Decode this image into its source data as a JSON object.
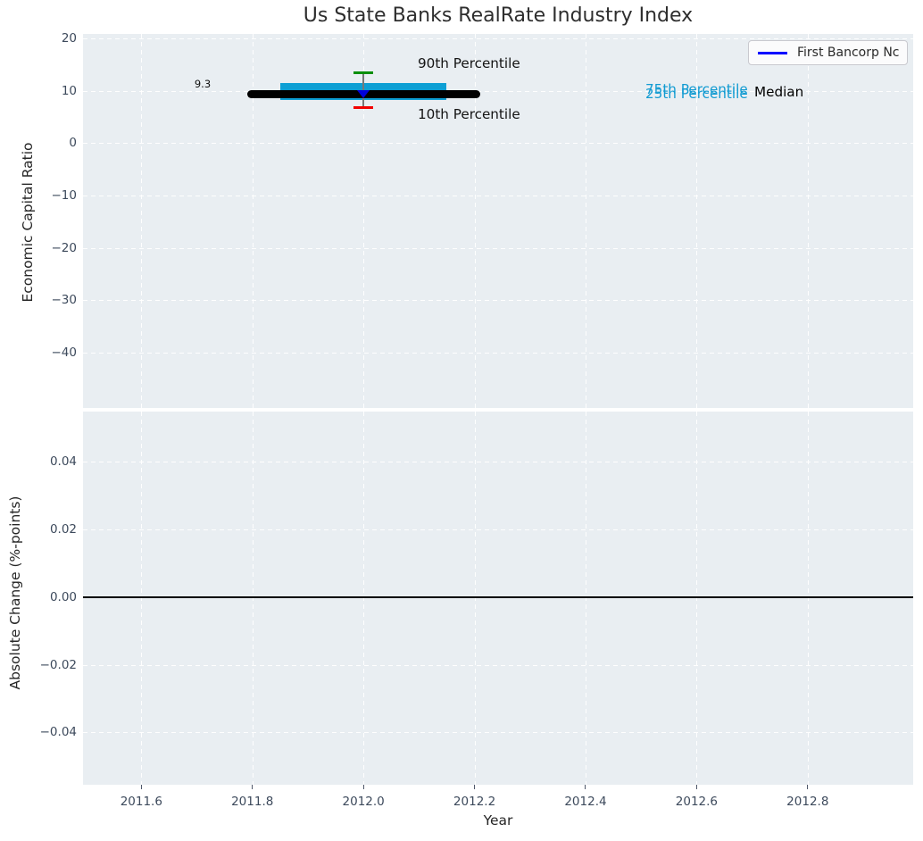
{
  "figure": {
    "title": "Us State Banks RealRate Industry Index",
    "xlabel": "Year",
    "top_ylabel": "Economic Capital Ratio",
    "bottom_ylabel": "Absolute Change (%-points)"
  },
  "legend": {
    "label": "First Bancorp Nc"
  },
  "annotations": {
    "median_value": "9.3",
    "p90_label": "90th Percentile",
    "p10_label": "10th Percentile",
    "p75_label": "75th Percentile",
    "p25_label": "25th Percentile",
    "median_label": "Median"
  },
  "colors": {
    "plot_bg": "#e9eef2",
    "grid": "#ffffff",
    "box_fill": "#0d9fd4",
    "median_line": "#000000",
    "p90_cap": "#0a8f0a",
    "p10_cap": "#f20000",
    "connector": "#777777",
    "company_marker": "#0000dd",
    "legend_line": "#0000ff",
    "tick_label": "#3d4a5c",
    "zero_line": "#000000"
  },
  "chart_data": [
    {
      "type": "scatter",
      "subplot": "top",
      "title": "Us State Banks RealRate Industry Index",
      "xlabel": "Year",
      "ylabel": "Economic Capital Ratio",
      "xlim": [
        2011.495,
        2012.99
      ],
      "ylim": [
        -50.6,
        20.9
      ],
      "xticks": [
        2011.6,
        2011.8,
        2012.0,
        2012.2,
        2012.4,
        2012.6,
        2012.8
      ],
      "xtick_labels": [
        "2011.6",
        "2011.8",
        "2012.0",
        "2012.2",
        "2012.4",
        "2012.6",
        "2012.8"
      ],
      "yticks": [
        20,
        10,
        0,
        -10,
        -20,
        -30,
        -40
      ],
      "ytick_labels": [
        "20",
        "10",
        "0",
        "−10",
        "−20",
        "−30",
        "−40"
      ],
      "grid": true,
      "legend_position": "upper right",
      "series": [
        {
          "name": "First Bancorp Nc",
          "marker": "triangle-down",
          "x": [
            2012.0
          ],
          "y": [
            9.4
          ]
        }
      ],
      "industry_stats": {
        "year": 2012.0,
        "median": 9.3,
        "median_label": "9.3",
        "p25": 8.2,
        "p75": 11.5,
        "p10": 6.9,
        "p90": 13.5,
        "median_line_xspan": [
          2011.79,
          2012.21
        ],
        "box_xspan": [
          2011.85,
          2012.15
        ]
      }
    },
    {
      "type": "line",
      "subplot": "bottom",
      "xlabel": "Year",
      "ylabel": "Absolute Change (%-points)",
      "xlim": [
        2011.495,
        2012.99
      ],
      "ylim": [
        -0.0555,
        0.0549
      ],
      "xticks": [
        2011.6,
        2011.8,
        2012.0,
        2012.2,
        2012.4,
        2012.6,
        2012.8
      ],
      "yticks": [
        0.04,
        0.02,
        0.0,
        -0.02,
        -0.04
      ],
      "ytick_labels": [
        "0.04",
        "0.02",
        "0.00",
        "−0.02",
        "−0.04"
      ],
      "grid": true,
      "zero_line": 0.0,
      "series": []
    }
  ]
}
